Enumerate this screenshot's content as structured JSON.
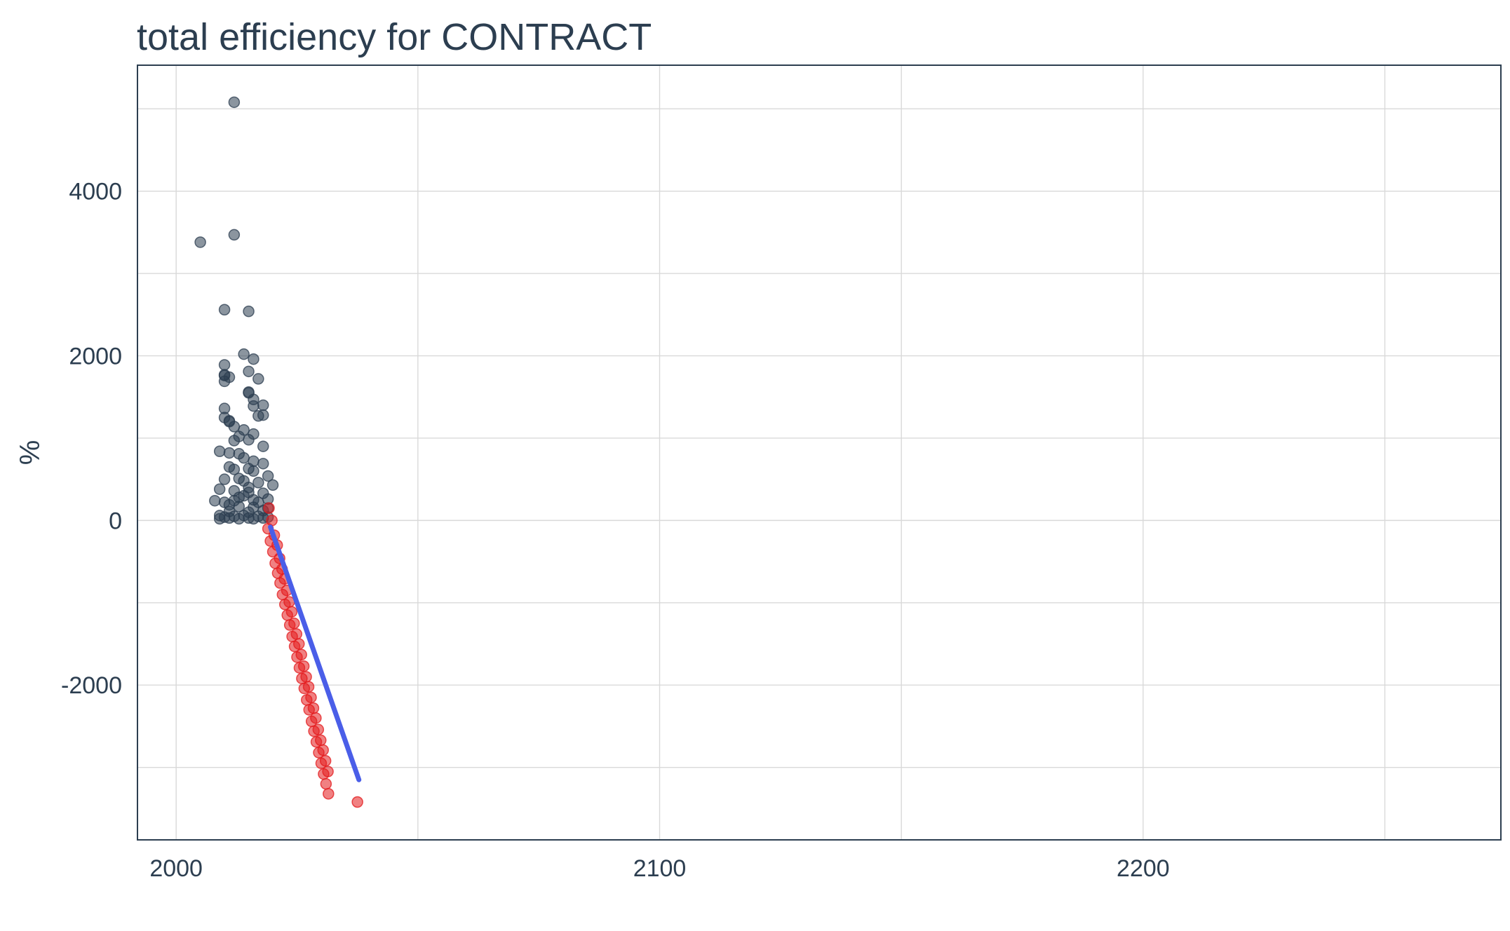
{
  "chart_data": {
    "type": "scatter",
    "title": "total efficiency for CONTRACT",
    "xlabel": "",
    "ylabel": "%",
    "xlim": [
      1992,
      2274
    ],
    "ylim": [
      -3880,
      5530
    ],
    "x_ticks": [
      2000,
      2100,
      2200
    ],
    "y_ticks": [
      -2000,
      0,
      2000,
      4000
    ],
    "grid": true,
    "legend": "none",
    "colors": {
      "historical": "#2c3e50",
      "forecast": "#e31a1c",
      "trend": "#4a5ee8",
      "grid": "#d9d9d9",
      "panel_border": "#2c3e50"
    },
    "series": [
      {
        "color": "#2c3e50",
        "points": [
          [
            2005,
            3380
          ],
          [
            2012,
            5080
          ],
          [
            2012,
            3470
          ],
          [
            2010,
            2560
          ],
          [
            2015,
            2540
          ],
          [
            2014,
            2020
          ],
          [
            2016,
            1960
          ],
          [
            2010,
            1890
          ],
          [
            2010,
            1770
          ],
          [
            2010,
            1760
          ],
          [
            2011,
            1740
          ],
          [
            2015,
            1810
          ],
          [
            2017,
            1720
          ],
          [
            2010,
            1690
          ],
          [
            2015,
            1560
          ],
          [
            2015,
            1550
          ],
          [
            2016,
            1470
          ],
          [
            2016,
            1390
          ],
          [
            2017,
            1270
          ],
          [
            2018,
            1400
          ],
          [
            2018,
            1280
          ],
          [
            2010,
            1360
          ],
          [
            2010,
            1250
          ],
          [
            2011,
            1210
          ],
          [
            2012,
            1140
          ],
          [
            2011,
            1200
          ],
          [
            2013,
            1020
          ],
          [
            2014,
            1100
          ],
          [
            2016,
            1050
          ],
          [
            2015,
            980
          ],
          [
            2012,
            970
          ],
          [
            2018,
            900
          ],
          [
            2009,
            840
          ],
          [
            2011,
            820
          ],
          [
            2013,
            810
          ],
          [
            2014,
            760
          ],
          [
            2016,
            720
          ],
          [
            2018,
            690
          ],
          [
            2011,
            650
          ],
          [
            2012,
            620
          ],
          [
            2015,
            630
          ],
          [
            2016,
            600
          ],
          [
            2019,
            540
          ],
          [
            2010,
            500
          ],
          [
            2013,
            510
          ],
          [
            2014,
            480
          ],
          [
            2017,
            460
          ],
          [
            2020,
            430
          ],
          [
            2009,
            380
          ],
          [
            2012,
            360
          ],
          [
            2015,
            340
          ],
          [
            2018,
            330
          ],
          [
            2008,
            240
          ],
          [
            2010,
            220
          ],
          [
            2011,
            190
          ],
          [
            2013,
            170
          ],
          [
            2016,
            160
          ],
          [
            2019,
            150
          ],
          [
            2009,
            60
          ],
          [
            2010,
            40
          ],
          [
            2011,
            30
          ],
          [
            2012,
            50
          ],
          [
            2013,
            20
          ],
          [
            2014,
            60
          ],
          [
            2015,
            30
          ],
          [
            2016,
            20
          ],
          [
            2017,
            50
          ],
          [
            2018,
            30
          ],
          [
            2019,
            40
          ],
          [
            2009,
            20
          ],
          [
            2014,
            300
          ],
          [
            2015,
            400
          ],
          [
            2016,
            250
          ],
          [
            2017,
            220
          ],
          [
            2013,
            280
          ],
          [
            2012,
            240
          ],
          [
            2018,
            120
          ],
          [
            2019,
            260
          ],
          [
            2011,
            110
          ],
          [
            2015,
            100
          ]
        ]
      },
      {
        "color": "#e31a1c",
        "points": [
          [
            2019.0,
            -100
          ],
          [
            2019.5,
            -250
          ],
          [
            2020.0,
            -380
          ],
          [
            2020.5,
            -520
          ],
          [
            2021.0,
            -640
          ],
          [
            2021.5,
            -760
          ],
          [
            2022.0,
            -900
          ],
          [
            2022.5,
            -1020
          ],
          [
            2023.0,
            -1150
          ],
          [
            2023.5,
            -1270
          ],
          [
            2024.0,
            -1410
          ],
          [
            2024.5,
            -1530
          ],
          [
            2025.0,
            -1660
          ],
          [
            2025.5,
            -1790
          ],
          [
            2026.0,
            -1920
          ],
          [
            2026.5,
            -2040
          ],
          [
            2027.0,
            -2180
          ],
          [
            2027.5,
            -2300
          ],
          [
            2028.0,
            -2440
          ],
          [
            2028.5,
            -2560
          ],
          [
            2029.0,
            -2690
          ],
          [
            2029.5,
            -2820
          ],
          [
            2030.0,
            -2950
          ],
          [
            2030.5,
            -3080
          ],
          [
            2031.0,
            -3200
          ],
          [
            2031.5,
            -3320
          ],
          [
            2037.5,
            -3420
          ],
          [
            2019.2,
            150
          ],
          [
            2019.8,
            0
          ],
          [
            2020.3,
            -180
          ],
          [
            2020.9,
            -300
          ],
          [
            2021.4,
            -460
          ],
          [
            2021.9,
            -590
          ],
          [
            2022.4,
            -710
          ],
          [
            2022.9,
            -850
          ],
          [
            2023.4,
            -990
          ],
          [
            2023.9,
            -1110
          ],
          [
            2024.4,
            -1250
          ],
          [
            2024.9,
            -1380
          ],
          [
            2025.4,
            -1500
          ],
          [
            2025.9,
            -1630
          ],
          [
            2026.4,
            -1770
          ],
          [
            2026.9,
            -1900
          ],
          [
            2027.4,
            -2020
          ],
          [
            2027.9,
            -2150
          ],
          [
            2028.4,
            -2280
          ],
          [
            2028.9,
            -2400
          ],
          [
            2029.4,
            -2540
          ],
          [
            2029.9,
            -2670
          ],
          [
            2030.4,
            -2790
          ],
          [
            2030.9,
            -2920
          ],
          [
            2031.4,
            -3050
          ]
        ]
      }
    ],
    "trend_line": {
      "color": "#4a5ee8",
      "x": [
        2019.5,
        2037.8
      ],
      "y": [
        -80,
        -3150
      ]
    }
  }
}
